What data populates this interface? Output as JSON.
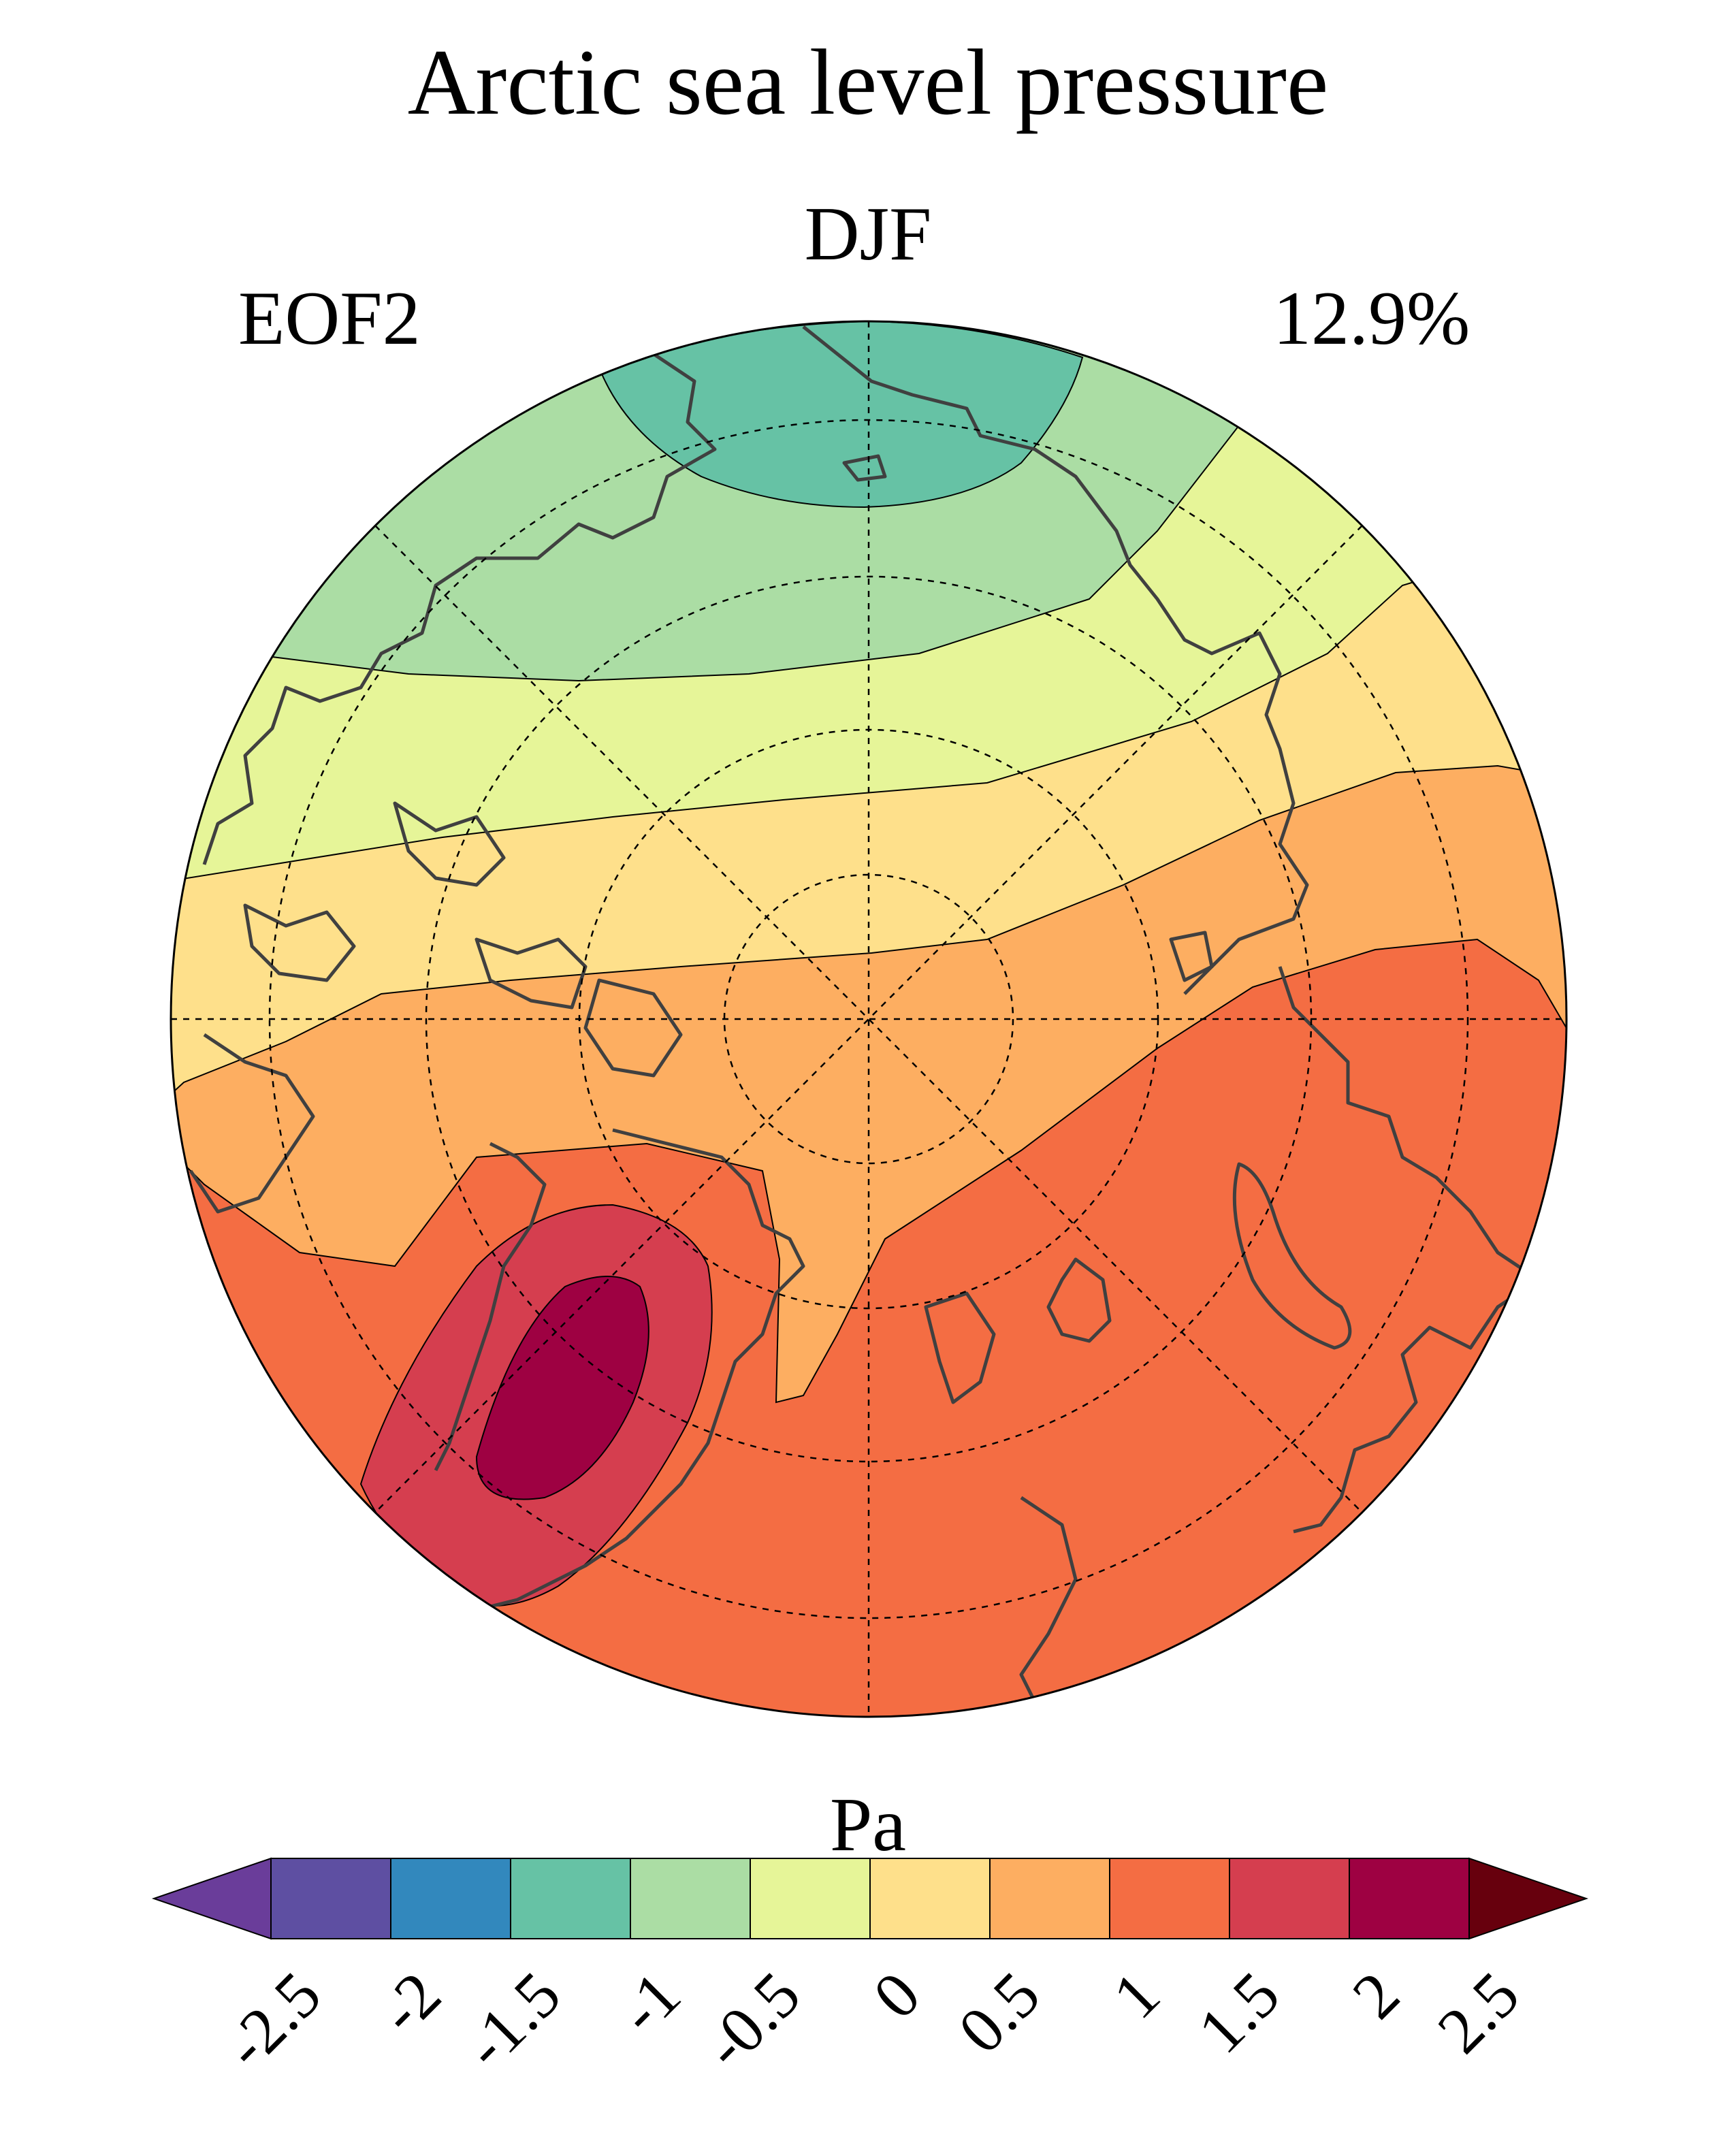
{
  "title": "Arctic sea level pressure",
  "season": "DJF",
  "mode_label": "EOF2",
  "variance_explained": "12.9%",
  "colorbar": {
    "unit_label": "Pa",
    "ticks": [
      "-2.5",
      "-2",
      "-1.5",
      "-1",
      "-0.5",
      "0",
      "0.5",
      "1",
      "1.5",
      "2",
      "2.5"
    ],
    "colors": [
      "#5e4fa2",
      "#3288bd",
      "#66c2a5",
      "#abdda4",
      "#e6f598",
      "#fee08b",
      "#fdae61",
      "#f46d43",
      "#d53e4f",
      "#9e0142"
    ],
    "under_color": "#6a3d9a",
    "over_color": "#67000d",
    "extend": "both"
  },
  "map": {
    "projection": "north-polar-stereographic",
    "field_levels_present": [
      "-1.5 to -1",
      "-1 to -0.5",
      "-0.5 to 0",
      "0 to 0.5",
      "0.5 to 1",
      "1 to 1.5",
      "1.5 to 2",
      "2 to 2.5"
    ],
    "coastline_color": "#404040",
    "gridline_color": "#000000"
  }
}
